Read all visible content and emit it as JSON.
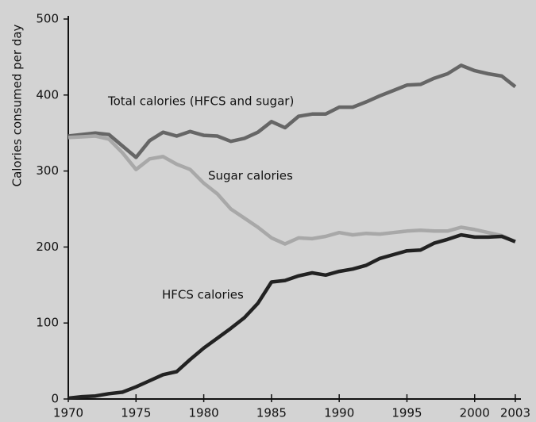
{
  "chart_data": {
    "type": "line",
    "y_label": "Calories consumed per day",
    "x": [
      1970,
      1971,
      1972,
      1973,
      1974,
      1975,
      1976,
      1977,
      1978,
      1979,
      1980,
      1981,
      1982,
      1983,
      1984,
      1985,
      1986,
      1987,
      1988,
      1989,
      1990,
      1991,
      1992,
      1993,
      1994,
      1995,
      1996,
      1997,
      1998,
      1999,
      2000,
      2001,
      2002,
      2003
    ],
    "series": [
      {
        "name": "Total calories (HFCS and sugar)",
        "color": "#666666",
        "values": [
          346,
          348,
          350,
          348,
          333,
          318,
          340,
          351,
          346,
          352,
          347,
          346,
          339,
          343,
          351,
          365,
          357,
          372,
          375,
          375,
          384,
          384,
          391,
          399,
          406,
          413,
          414,
          422,
          428,
          439,
          432,
          428,
          425,
          411
        ]
      },
      {
        "name": "Sugar calories",
        "color": "#a8a8a8",
        "values": [
          344,
          345,
          346,
          342,
          324,
          302,
          316,
          319,
          309,
          302,
          284,
          270,
          250,
          238,
          226,
          212,
          204,
          212,
          211,
          214,
          219,
          216,
          218,
          217,
          219,
          221,
          222,
          221,
          221,
          226,
          223,
          219,
          215,
          207
        ]
      },
      {
        "name": "HFCS calories",
        "color": "#222222",
        "values": [
          1,
          3,
          4,
          7,
          9,
          16,
          24,
          32,
          36,
          52,
          67,
          80,
          93,
          107,
          126,
          154,
          156,
          162,
          166,
          163,
          168,
          171,
          176,
          185,
          190,
          195,
          196,
          205,
          210,
          216,
          213,
          213,
          214,
          207
        ]
      }
    ],
    "xlim": [
      1970,
      2004
    ],
    "xticks": [
      1970,
      1975,
      1980,
      1985,
      1990,
      1995,
      2000,
      2003
    ],
    "ylim": [
      0,
      500
    ],
    "yticks": [
      0,
      100,
      200,
      300,
      400,
      500
    ],
    "grid": false
  }
}
